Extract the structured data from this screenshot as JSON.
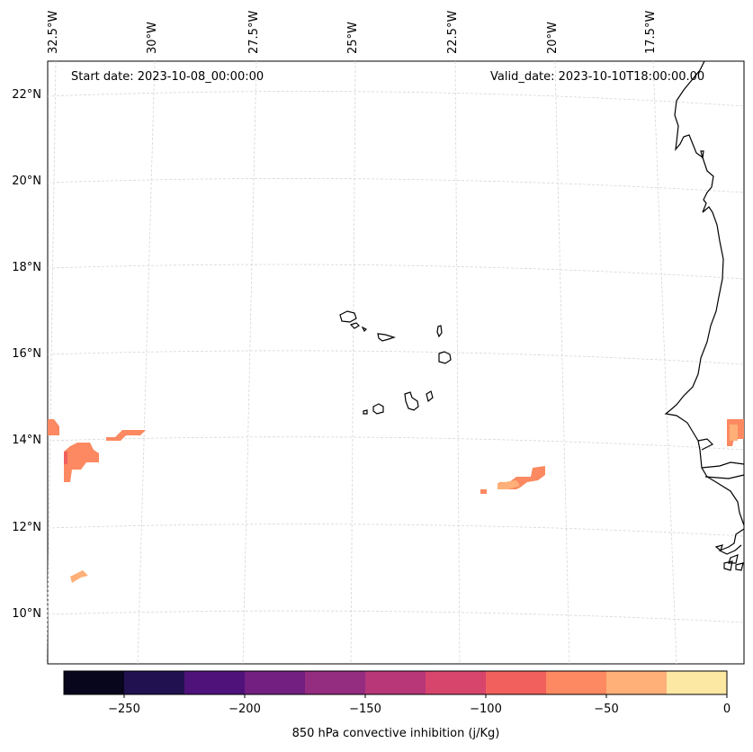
{
  "header": {
    "start_date": "Start date: 2023-10-08_00:00:00",
    "valid_date": "Valid_date: 2023-10-10T18:00:00.00"
  },
  "axes": {
    "lon_labels": [
      "32.5°W",
      "30°W",
      "27.5°W",
      "25°W",
      "22.5°W",
      "20°W",
      "17.5°W"
    ],
    "lat_labels": [
      "22°N",
      "20°N",
      "18°N",
      "16°N",
      "14°N",
      "12°N",
      "10°N"
    ]
  },
  "colorbar": {
    "label": "850 hPa convective inhibition (j/Kg)",
    "ticks": [
      "−250",
      "−200",
      "−150",
      "−100",
      "−50",
      "0"
    ],
    "colors": [
      "#07061c",
      "#221150",
      "#4f127b",
      "#721f81",
      "#942c80",
      "#b73779",
      "#d8456c",
      "#f1605d",
      "#fc8961",
      "#feb078",
      "#fde8a3"
    ]
  },
  "map_features": {
    "colormap": "magma",
    "region": "Cabo Verde islands and West African coast",
    "lon_range_deg": [
      -33,
      -16
    ],
    "lat_range_deg": [
      9,
      22.8
    ]
  }
}
